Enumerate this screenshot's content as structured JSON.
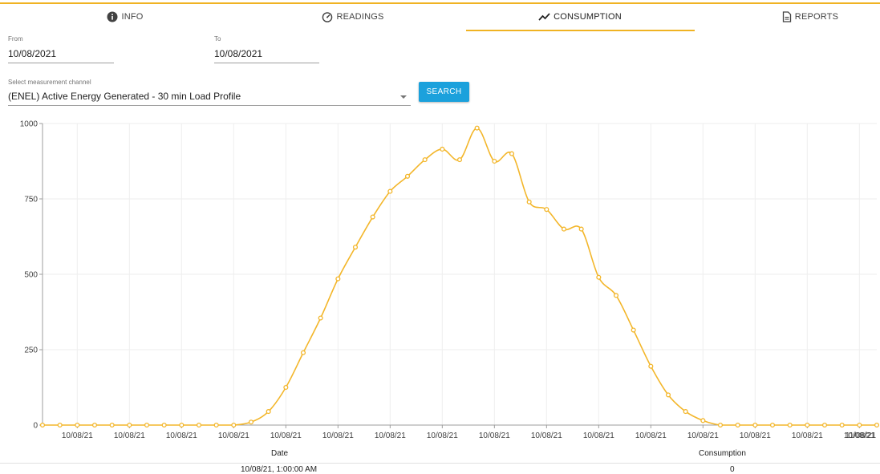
{
  "tabs": [
    {
      "label": "INFO",
      "icon": "info-icon"
    },
    {
      "label": "READINGS",
      "icon": "speedometer-icon"
    },
    {
      "label": "CONSUMPTION",
      "icon": "trend-icon",
      "active": true
    },
    {
      "label": "REPORTS",
      "icon": "document-icon"
    }
  ],
  "filters": {
    "from_label": "From",
    "from_value": "10/08/2021",
    "to_label": "To",
    "to_value": "10/08/2021",
    "channel_label": "Select measurement channel",
    "channel_value": "(ENEL) Active Energy Generated - 30 min Load Profile",
    "search_label": "SEARCH"
  },
  "colors": {
    "accent": "#f0b323",
    "button": "#1ba1dc",
    "line": "#f3b62a"
  },
  "chart_data": {
    "type": "line",
    "title": "",
    "xlabel": "",
    "ylabel": "",
    "ylim": [
      0,
      1000
    ],
    "yticks": [
      0,
      250,
      500,
      750,
      1000
    ],
    "grid": true,
    "x_tick_labels": [
      "10/08/21",
      "10/08/21",
      "10/08/21",
      "10/08/21",
      "10/08/21",
      "10/08/21",
      "10/08/21",
      "10/08/21",
      "10/08/21",
      "10/08/21",
      "10/08/21",
      "10/08/21",
      "10/08/21",
      "10/08/21",
      "10/08/21",
      "10/08/21",
      "11/08/21"
    ],
    "series": [
      {
        "values": [
          0,
          0,
          0,
          0,
          0,
          0,
          0,
          0,
          0,
          0,
          0,
          0,
          10,
          45,
          125,
          240,
          355,
          485,
          590,
          690,
          775,
          825,
          880,
          915,
          880,
          985,
          875,
          900,
          740,
          715,
          650,
          650,
          490,
          430,
          315,
          195,
          100,
          45,
          15,
          0,
          0,
          0,
          0,
          0,
          0,
          0,
          0,
          0,
          0
        ]
      }
    ]
  },
  "table": {
    "headers": [
      "Date",
      "Consumption"
    ],
    "first_row": [
      "10/08/21, 1:00:00 AM",
      "0"
    ]
  }
}
